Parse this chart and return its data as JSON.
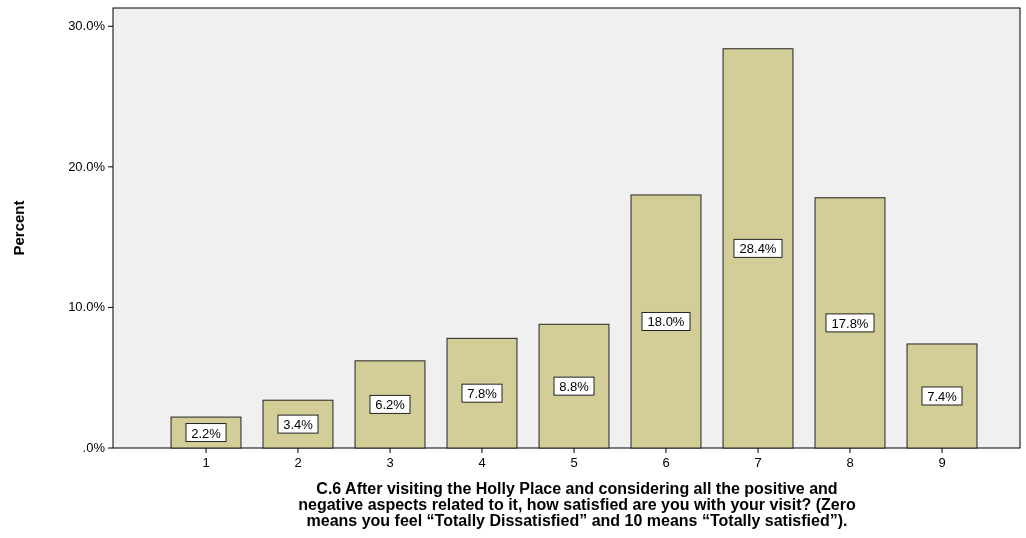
{
  "chart_data": {
    "type": "bar",
    "categories": [
      "1",
      "2",
      "3",
      "4",
      "5",
      "6",
      "7",
      "8",
      "9"
    ],
    "values": [
      2.2,
      3.4,
      6.2,
      7.8,
      8.8,
      18.0,
      28.4,
      17.8,
      7.4
    ],
    "value_labels": [
      "2.2%",
      "3.4%",
      "6.2%",
      "7.8%",
      "8.8%",
      "18.0%",
      "28.4%",
      "17.8%",
      "7.4%"
    ],
    "color": "#d3ce97",
    "ylim": [
      0,
      31.3
    ],
    "yticks": [
      {
        "value": 0,
        "label": ".0%"
      },
      {
        "value": 10,
        "label": "10.0%"
      },
      {
        "value": 20,
        "label": "20.0%"
      },
      {
        "value": 30,
        "label": "30.0%"
      }
    ],
    "ylabel": "Percent",
    "xlabel": "C.6 After visiting the Holly Place and considering all the positive and\nnegative aspects related to it, how satisfied are you with your visit? (Zero\nmeans you feel “Totally Dissatisfied” and 10 means “Totally satisfied”).",
    "grid": false
  }
}
